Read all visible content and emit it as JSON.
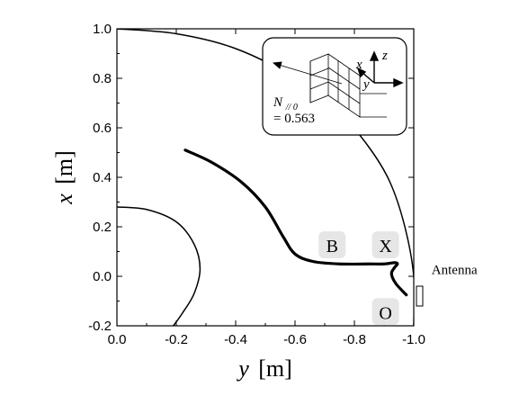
{
  "chart_data": {
    "type": "line",
    "x_axis": {
      "label_var": "y",
      "label_unit": "[m]",
      "range": [
        0.0,
        -1.0
      ],
      "ticks": [
        "0.0",
        "-0.2",
        "-0.4",
        "-0.6",
        "-0.8",
        "-1.0"
      ],
      "tick_values": [
        0.0,
        -0.2,
        -0.4,
        -0.6,
        -0.8,
        -1.0
      ]
    },
    "y_axis": {
      "label_var": "x",
      "label_unit": "[m]",
      "range": [
        -0.2,
        1.0
      ],
      "ticks": [
        "-0.2",
        "0.0",
        "0.2",
        "0.4",
        "0.6",
        "0.8",
        "1.0"
      ],
      "tick_values": [
        -0.2,
        0.0,
        0.2,
        0.4,
        0.6,
        0.8,
        1.0
      ]
    },
    "grid": false,
    "series": [
      {
        "role": "outer-boundary",
        "points": [
          [
            0.0,
            1.0
          ],
          [
            -0.2,
            0.98
          ],
          [
            -0.4,
            0.92
          ],
          [
            -0.6,
            0.8
          ],
          [
            -0.75,
            0.66
          ],
          [
            -0.85,
            0.52
          ],
          [
            -0.92,
            0.38
          ],
          [
            -0.97,
            0.2
          ],
          [
            -1.0,
            0.0
          ],
          [
            -1.0,
            -0.2
          ]
        ]
      },
      {
        "role": "inner-boundary",
        "points": [
          [
            0.0,
            0.28
          ],
          [
            -0.1,
            0.27
          ],
          [
            -0.2,
            0.22
          ],
          [
            -0.26,
            0.13
          ],
          [
            -0.28,
            0.03
          ],
          [
            -0.26,
            -0.07
          ],
          [
            -0.22,
            -0.15
          ],
          [
            -0.19,
            -0.2
          ]
        ]
      },
      {
        "role": "ray-trajectory",
        "points": [
          [
            -0.23,
            0.51
          ],
          [
            -0.32,
            0.46
          ],
          [
            -0.42,
            0.38
          ],
          [
            -0.5,
            0.28
          ],
          [
            -0.56,
            0.16
          ],
          [
            -0.6,
            0.09
          ],
          [
            -0.66,
            0.06
          ],
          [
            -0.75,
            0.05
          ],
          [
            -0.85,
            0.05
          ],
          [
            -0.9,
            0.05
          ],
          [
            -0.935,
            0.055
          ],
          [
            -0.945,
            0.05
          ],
          [
            -0.935,
            0.035
          ],
          [
            -0.925,
            0.01
          ],
          [
            -0.94,
            -0.03
          ],
          [
            -0.975,
            -0.075
          ]
        ]
      }
    ],
    "annotations": [
      {
        "text": "B",
        "x": -0.725,
        "y": 0.12
      },
      {
        "text": "X",
        "x": -0.905,
        "y": 0.12
      },
      {
        "text": "O",
        "x": -0.905,
        "y": -0.15
      },
      {
        "text": "Antenna",
        "x": -1.06,
        "y": 0.01
      }
    ],
    "inset": {
      "n_symbol": "N",
      "n_subscript": "// 0",
      "n_value": "= 0.563",
      "axis_labels": [
        "x",
        "y",
        "z"
      ]
    }
  }
}
